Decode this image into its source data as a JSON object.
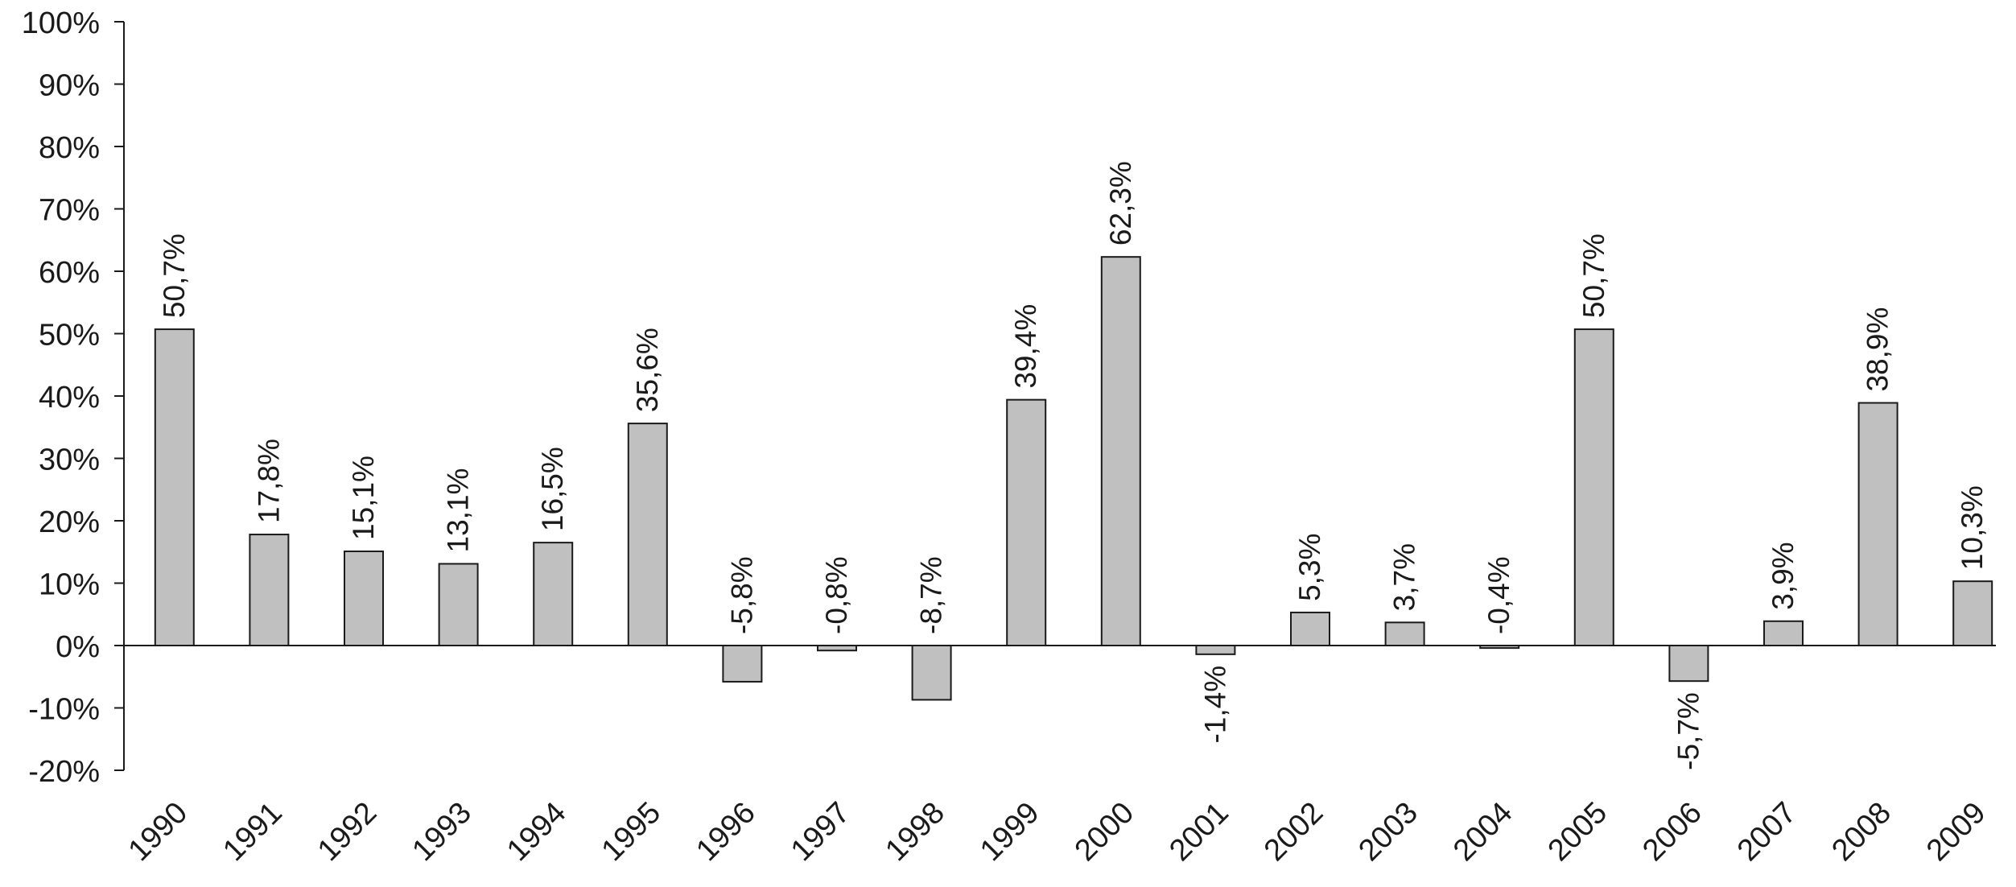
{
  "chart_data": {
    "type": "bar",
    "categories": [
      "1990",
      "1991",
      "1992",
      "1993",
      "1994",
      "1995",
      "1996",
      "1997",
      "1998",
      "1999",
      "2000",
      "2001",
      "2002",
      "2003",
      "2004",
      "2005",
      "2006",
      "2007",
      "2008",
      "2009"
    ],
    "values": [
      50.7,
      17.8,
      15.1,
      13.1,
      16.5,
      35.6,
      -5.8,
      -0.8,
      -8.7,
      39.4,
      62.3,
      -1.4,
      5.3,
      3.7,
      -0.4,
      50.7,
      -5.7,
      3.9,
      38.9,
      10.3
    ],
    "data_labels": [
      "50,7%",
      "17,8%",
      "15,1%",
      "13,1%",
      "16,5%",
      "35,6%",
      "-5,8%",
      "-0,8%",
      "-8,7%",
      "39,4%",
      "62,3%",
      "-1,4%",
      "5,3%",
      "3,7%",
      "-0,4%",
      "50,7%",
      "-5,7%",
      "3,9%",
      "38,9%",
      "10,3%"
    ],
    "label_below": [
      false,
      false,
      false,
      false,
      false,
      false,
      false,
      false,
      false,
      false,
      false,
      true,
      false,
      false,
      false,
      false,
      true,
      false,
      false,
      false
    ],
    "y_ticks": [
      -20,
      -10,
      0,
      10,
      20,
      30,
      40,
      50,
      60,
      70,
      80,
      90,
      100
    ],
    "y_tick_labels": [
      "-20%",
      "-10%",
      "0%",
      "10%",
      "20%",
      "30%",
      "40%",
      "50%",
      "60%",
      "70%",
      "80%",
      "90%",
      "100%"
    ],
    "ylim": [
      -20,
      100
    ],
    "title": "",
    "xlabel": "",
    "ylabel": "",
    "grid": false,
    "legend": "none",
    "bar_color": "#c0c0c0",
    "bar_stroke": "#1a1a1a",
    "axis_color": "#1a1a1a"
  }
}
